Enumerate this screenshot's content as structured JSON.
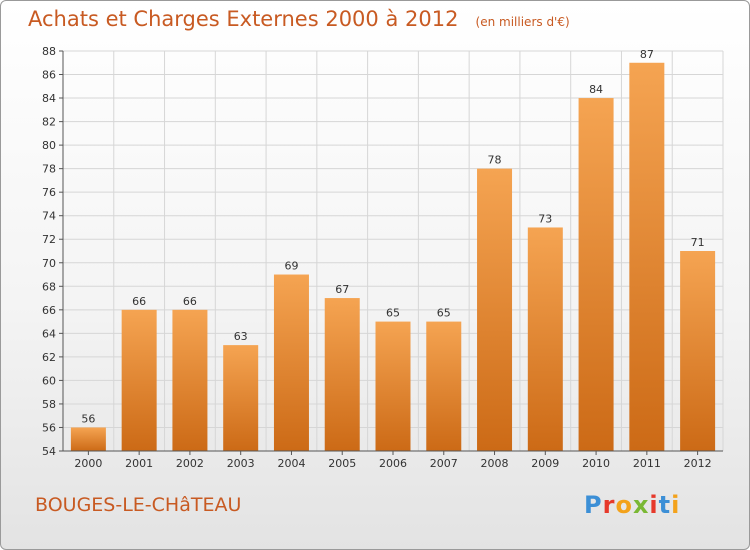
{
  "header": {
    "title": "Achats et Charges Externes 2000 à 2012",
    "subtitle": "(en milliers d'€)"
  },
  "footer": {
    "place": "BOUGES-LE-CHâTEAU",
    "brand": "Proxiti",
    "brand_colors": [
      "#3c8fd6",
      "#e6392b",
      "#f3a21b",
      "#7ab834",
      "#e6392b",
      "#3c8fd6",
      "#f3a21b"
    ]
  },
  "colors": {
    "bar_top": "#f5a452",
    "bar_bottom": "#cc6a16",
    "text_accent": "#c85a22"
  },
  "chart_data": {
    "type": "bar",
    "title": "Achats et Charges Externes 2000 à 2012",
    "subtitle": "(en milliers d'€)",
    "categories": [
      "2000",
      "2001",
      "2002",
      "2003",
      "2004",
      "2005",
      "2006",
      "2007",
      "2008",
      "2009",
      "2010",
      "2011",
      "2012"
    ],
    "values": [
      56,
      66,
      66,
      63,
      69,
      67,
      65,
      65,
      78,
      73,
      84,
      87,
      71
    ],
    "ylim": [
      54,
      88
    ],
    "yticks": [
      54,
      56,
      58,
      60,
      62,
      64,
      66,
      68,
      70,
      72,
      74,
      76,
      78,
      80,
      82,
      84,
      86,
      88
    ],
    "grid": true,
    "data_labels": true,
    "xlabel": "",
    "ylabel": ""
  }
}
